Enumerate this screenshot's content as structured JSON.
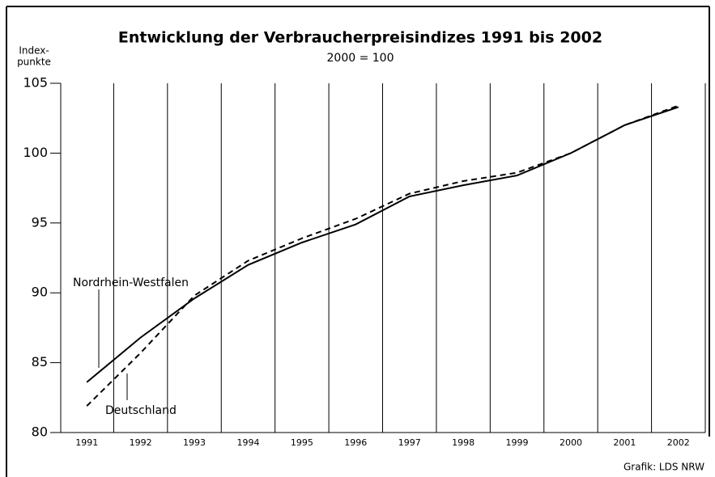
{
  "chart_data": {
    "type": "line",
    "title": "Entwicklung der Verbraucherpreisindizes 1991 bis 2002",
    "subtitle": "2000 = 100",
    "ylabel": [
      "Index-",
      "punkte"
    ],
    "source": "Grafik: LDS NRW",
    "categories": [
      "1991",
      "1992",
      "1993",
      "1994",
      "1995",
      "1996",
      "1997",
      "1998",
      "1999",
      "2000",
      "2001",
      "2002"
    ],
    "series": [
      {
        "name": "Nordrhein-Westfalen",
        "color": "#000000",
        "dash": false,
        "values": [
          83.6,
          86.8,
          89.6,
          92.0,
          93.6,
          94.9,
          96.9,
          97.7,
          98.4,
          100,
          102.0,
          103.3
        ]
      },
      {
        "name": "Deutschland",
        "color": "#000000",
        "dash": true,
        "values": [
          81.9,
          85.7,
          89.8,
          92.3,
          93.9,
          95.3,
          97.1,
          98.0,
          98.6,
          100,
          102.0,
          103.4
        ]
      }
    ],
    "ylim": [
      80,
      105
    ],
    "yticks": [
      80,
      85,
      90,
      95,
      100,
      105
    ]
  }
}
